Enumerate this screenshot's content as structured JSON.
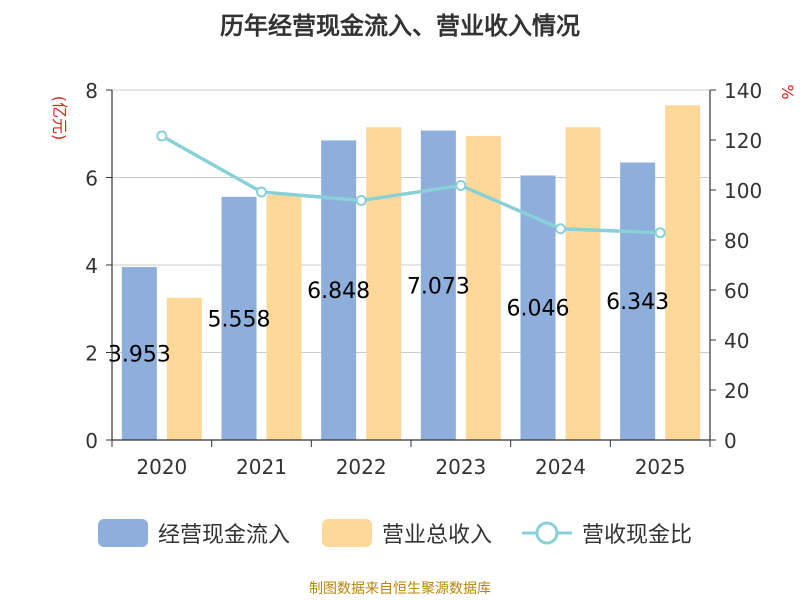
{
  "chart_data": {
    "type": "bar",
    "title": "历年经营现金流入、营业收入情况",
    "categories": [
      "2020",
      "2021",
      "2022",
      "2023",
      "2024",
      "2025"
    ],
    "series": [
      {
        "name": "经营现金流入",
        "type": "bar",
        "axis": "left",
        "color": "#8eaedc",
        "values": [
          3.953,
          5.558,
          6.848,
          7.073,
          6.046,
          6.343
        ],
        "labels": [
          "3.953",
          "5.558",
          "6.848",
          "7.073",
          "6.046",
          "6.343"
        ]
      },
      {
        "name": "营业总收入",
        "type": "bar",
        "axis": "left",
        "color": "#fdd899",
        "values": [
          3.25,
          5.6,
          7.15,
          6.95,
          7.15,
          7.65
        ]
      },
      {
        "name": "营收现金比",
        "type": "line",
        "axis": "right",
        "color": "#89d0d8",
        "values": [
          121.6,
          99.2,
          95.8,
          101.8,
          84.5,
          82.9
        ]
      }
    ],
    "ylabel_left": "(亿元)",
    "ylabel_right": "%",
    "ylim_left": [
      0,
      8
    ],
    "ylim_right": [
      0,
      140
    ],
    "yticks_left": [
      "0",
      "2",
      "4",
      "6",
      "8"
    ],
    "yticks_right": [
      "0",
      "20",
      "40",
      "60",
      "80",
      "100",
      "120",
      "140"
    ],
    "grid": true,
    "legend_position": "bottom"
  },
  "source_text": "制图数据来自恒生聚源数据库",
  "axis_label_color": "#e02020"
}
